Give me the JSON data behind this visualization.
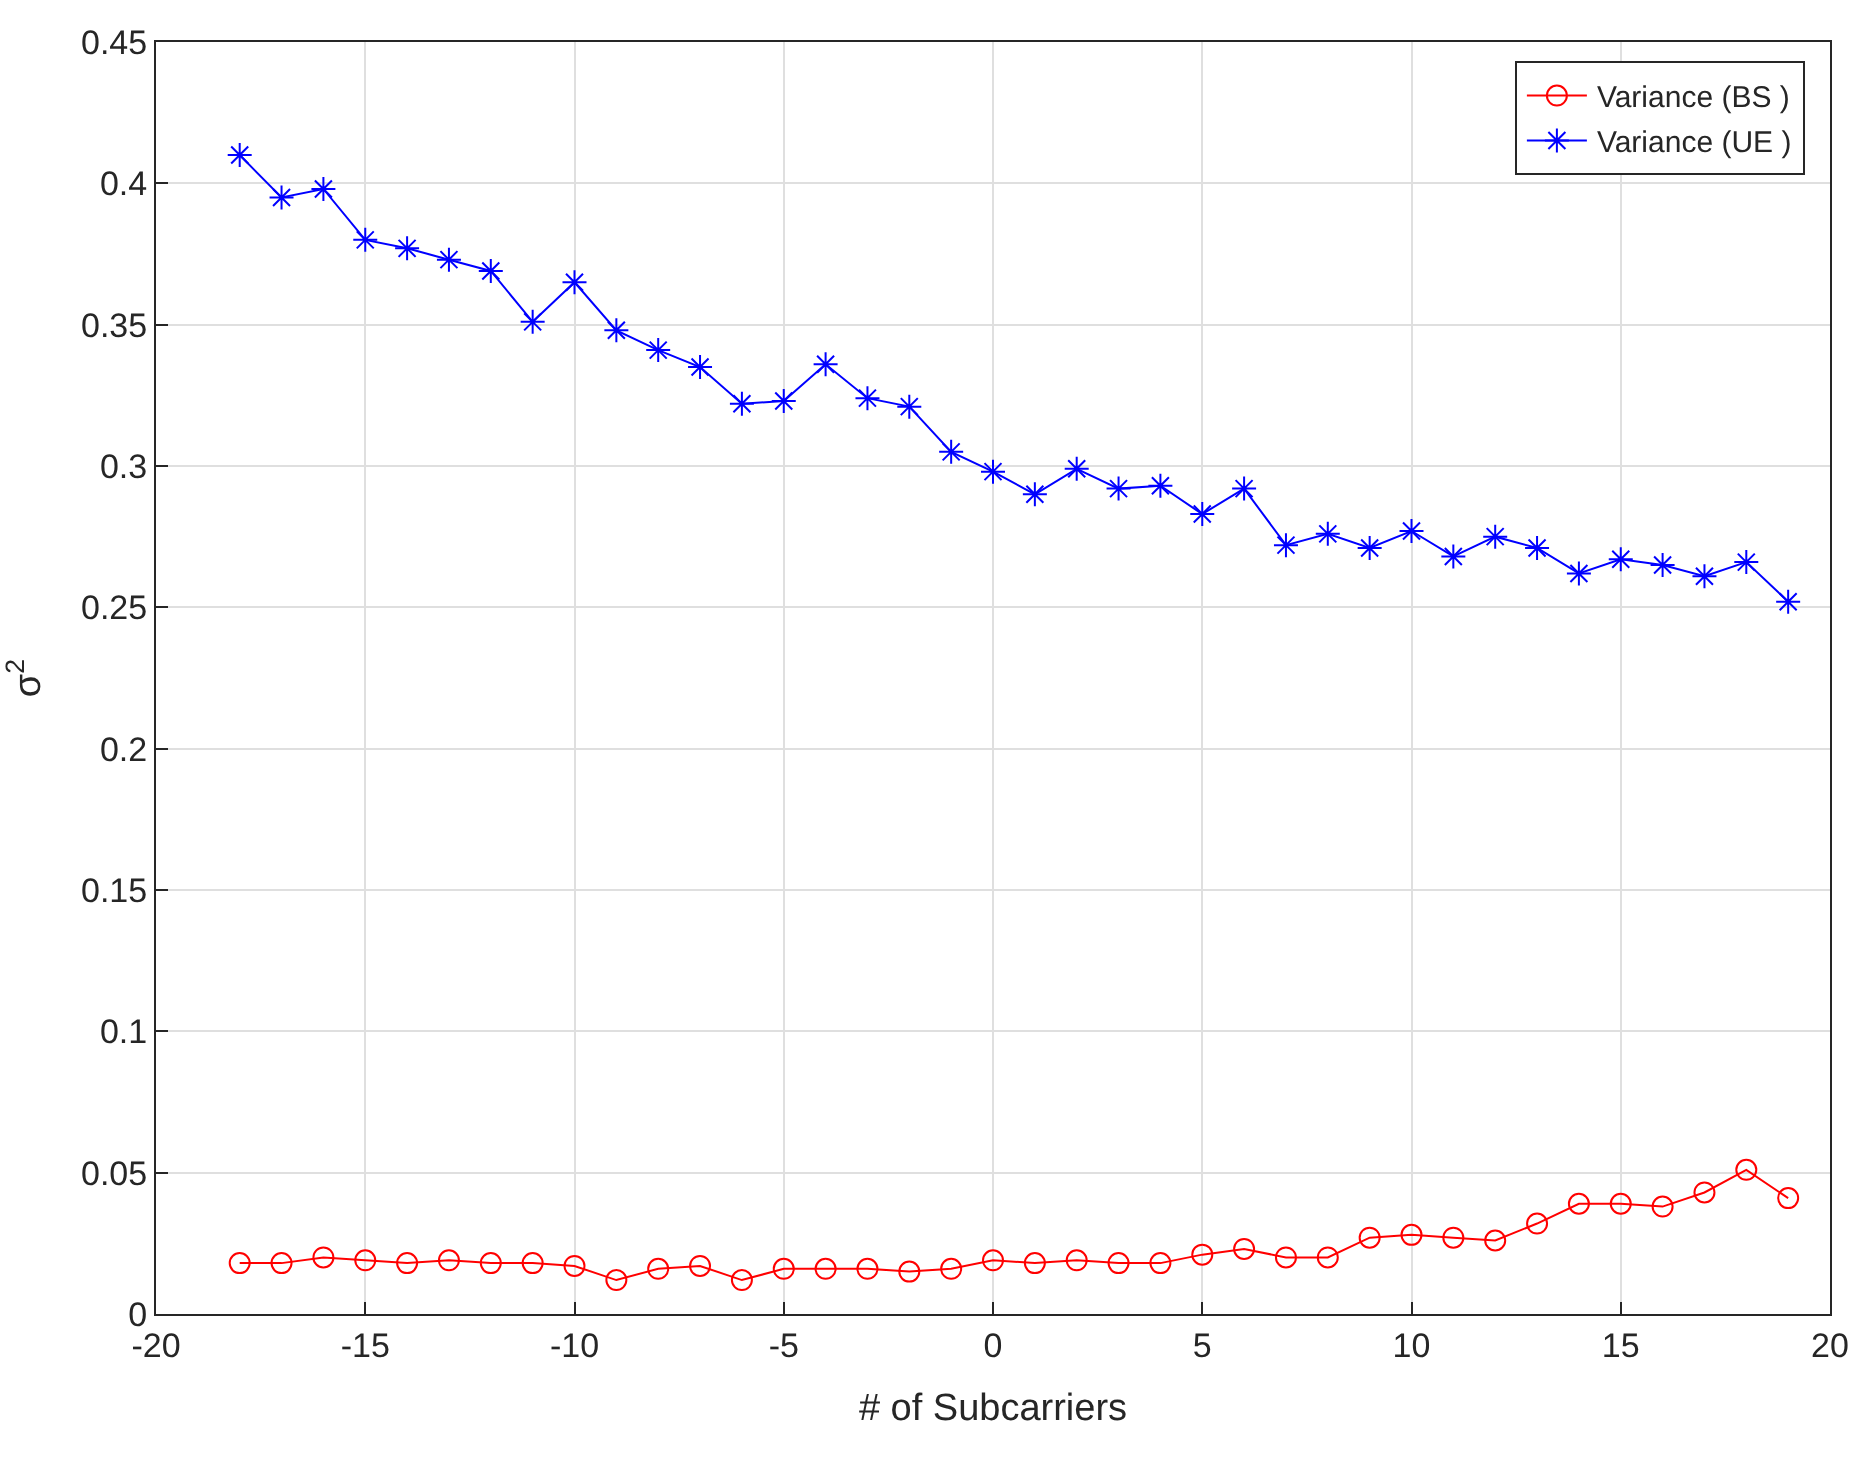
{
  "chart_data": {
    "type": "line",
    "xlabel": "# of Subcarriers",
    "ylabel": "σ$^{2}$",
    "x": [
      -18,
      -17,
      -16,
      -15,
      -14,
      -13,
      -12,
      -11,
      -10,
      -9,
      -8,
      -7,
      -6,
      -5,
      -4,
      -3,
      -2,
      -1,
      0,
      1,
      2,
      3,
      4,
      5,
      6,
      7,
      8,
      9,
      10,
      11,
      12,
      13,
      14,
      15,
      16,
      17,
      18,
      19
    ],
    "series": [
      {
        "name": "Variance (BS )",
        "color": "#ff0000",
        "marker": "circle",
        "values": [
          0.018,
          0.018,
          0.02,
          0.019,
          0.018,
          0.019,
          0.018,
          0.018,
          0.017,
          0.012,
          0.016,
          0.017,
          0.012,
          0.016,
          0.016,
          0.016,
          0.015,
          0.016,
          0.019,
          0.018,
          0.019,
          0.018,
          0.018,
          0.021,
          0.023,
          0.02,
          0.02,
          0.027,
          0.028,
          0.027,
          0.026,
          0.032,
          0.039,
          0.039,
          0.038,
          0.043,
          0.051,
          0.041
        ]
      },
      {
        "name": "Variance (UE )",
        "color": "#0000ff",
        "marker": "cross",
        "values": [
          0.41,
          0.395,
          0.398,
          0.38,
          0.377,
          0.373,
          0.369,
          0.351,
          0.365,
          0.348,
          0.341,
          0.335,
          0.322,
          0.323,
          0.336,
          0.324,
          0.321,
          0.305,
          0.298,
          0.29,
          0.299,
          0.292,
          0.293,
          0.283,
          0.292,
          0.272,
          0.276,
          0.271,
          0.277,
          0.268,
          0.275,
          0.271,
          0.262,
          0.267,
          0.265,
          0.261,
          0.266,
          0.252
        ]
      }
    ],
    "xlim": [
      -20,
      20
    ],
    "xticks": [
      -20,
      -15,
      -10,
      -5,
      0,
      5,
      10,
      15,
      20
    ],
    "ylim": [
      0,
      0.45
    ],
    "yticks": [
      0,
      0.05,
      0.1,
      0.15,
      0.2,
      0.25,
      0.3,
      0.35,
      0.4,
      0.45
    ],
    "grid": true,
    "legend": "top right",
    "line_style": "solid"
  }
}
